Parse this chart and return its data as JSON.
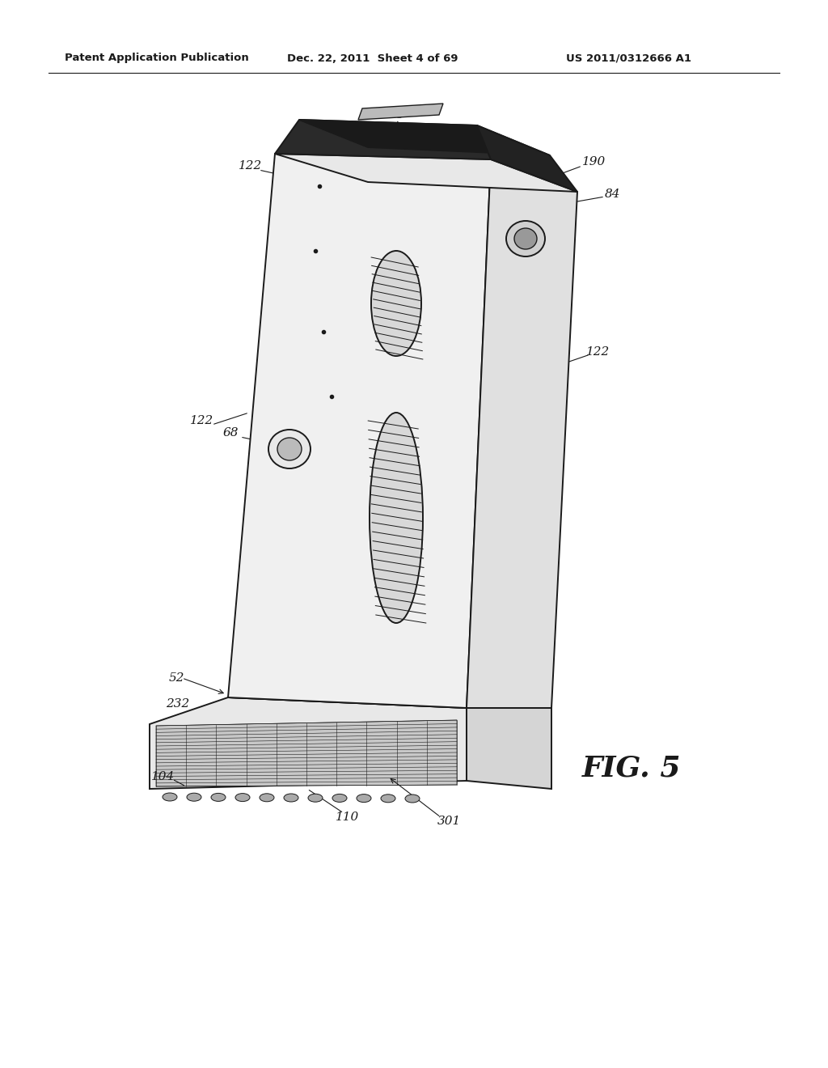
{
  "bg_color": "#ffffff",
  "line_color": "#1a1a1a",
  "header_left": "Patent Application Publication",
  "header_mid": "Dec. 22, 2011  Sheet 4 of 69",
  "header_right": "US 2011/0312666 A1",
  "fig_label": "FIG. 5"
}
